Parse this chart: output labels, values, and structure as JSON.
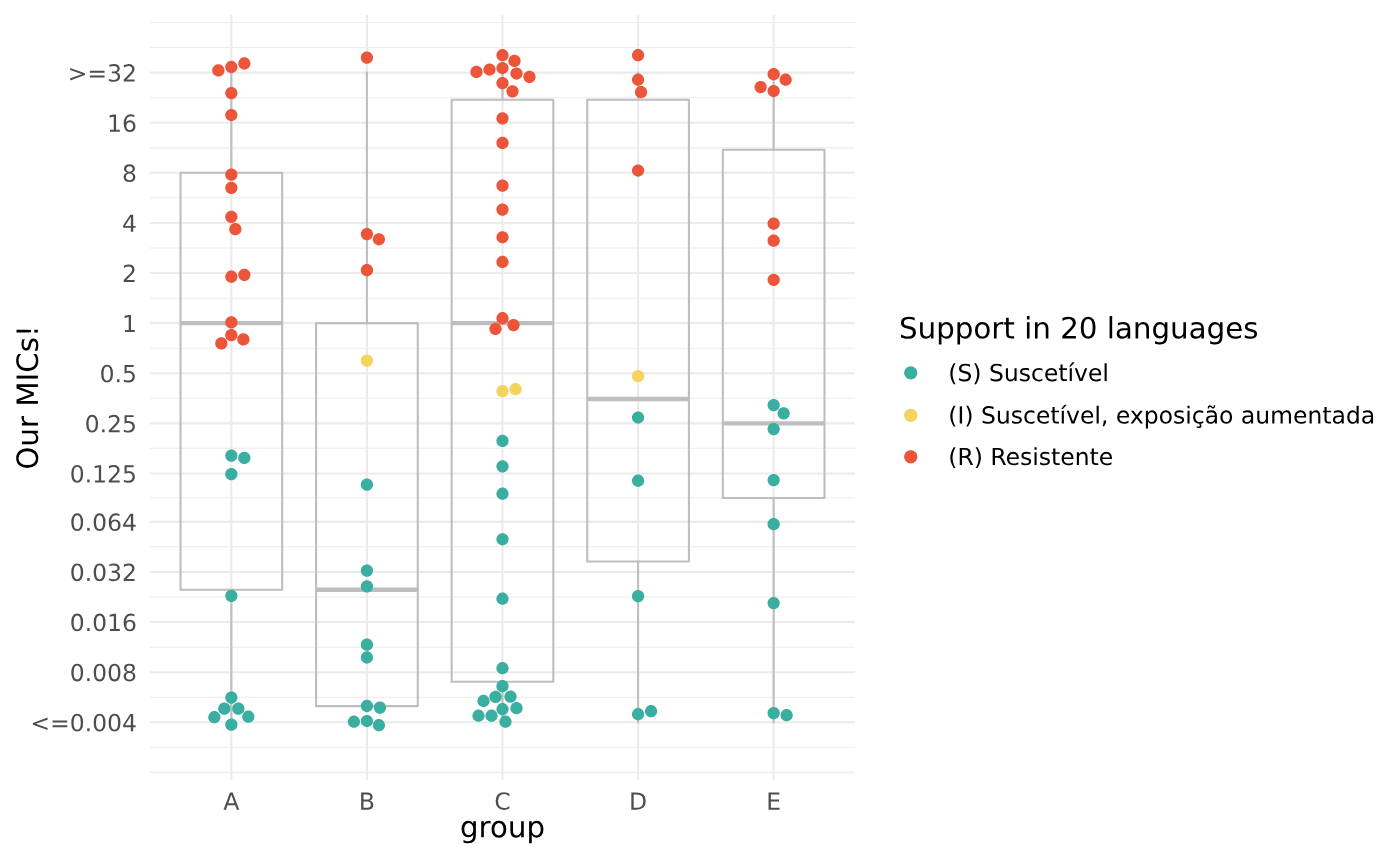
{
  "chart_data": {
    "type": "box",
    "categories": [
      "A",
      "B",
      "C",
      "D",
      "E"
    ],
    "xlabel": "group",
    "ylabel": "Our MICs!",
    "legend_title": "Support in 20 languages",
    "legend": "right",
    "grid": true,
    "log": "y",
    "marker": "circle",
    "color": "#bebebe",
    "ylim": [
      0.0018,
      71
    ],
    "yticks": [
      {
        "value": 0.002,
        "label": null
      },
      {
        "value": 0.00283,
        "label": null
      },
      {
        "value": 0.004,
        "label": "<=0.004"
      },
      {
        "value": 0.00566,
        "label": null
      },
      0.008,
      {
        "value": 0.0113,
        "label": null
      },
      0.016,
      {
        "value": 0.0226,
        "label": null
      },
      0.032,
      {
        "value": 0.0453,
        "label": null
      },
      0.064,
      {
        "value": 0.0894,
        "label": null
      },
      0.125,
      {
        "value": 0.177,
        "label": null
      },
      0.25,
      {
        "value": 0.354,
        "label": null
      },
      0.5,
      {
        "value": 0.707,
        "label": null
      },
      1,
      {
        "value": 1.41,
        "label": null
      },
      2,
      {
        "value": 2.83,
        "label": null
      },
      4,
      {
        "value": 5.66,
        "label": null
      },
      8,
      {
        "value": 11.3,
        "label": null
      },
      16,
      {
        "value": 22.6,
        "label": null
      },
      {
        "value": 32,
        "label": ">=32"
      },
      {
        "value": 45.3,
        "label": null
      },
      {
        "value": 64,
        "label": null
      }
    ],
    "boxes": [
      {
        "low": 0.004,
        "q1": 0.025,
        "median": 1,
        "q3": 8,
        "high": 32
      },
      {
        "low": 0.005,
        "q1": 0.005,
        "median": 0.025,
        "q3": 1,
        "high": 32
      },
      {
        "low": 0.004,
        "q1": 0.007,
        "median": 1,
        "q3": 22,
        "high": 32
      },
      {
        "low": 0.004,
        "q1": 0.037,
        "median": 0.35,
        "q3": 22,
        "high": 32
      },
      {
        "low": 0.004,
        "q1": 0.089,
        "median": 0.25,
        "q3": 11,
        "high": 32
      }
    ],
    "series": [
      {
        "type": "scatter",
        "name": "(S) Suscetível",
        "color": "#3aaea0",
        "x": [
          "A",
          "A",
          "A",
          "A",
          "A",
          "A",
          "A",
          "A",
          "A",
          "A",
          "B",
          "B",
          "B",
          "B",
          "B",
          "B",
          "B",
          "B",
          "B",
          "B",
          "C",
          "C",
          "C",
          "C",
          "C",
          "C",
          "C",
          "C",
          "C",
          "C",
          "C",
          "C",
          "C",
          "C",
          "C",
          "D",
          "D",
          "D",
          "D",
          "D",
          "E",
          "E",
          "E",
          "E",
          "E",
          "E",
          "E",
          "E"
        ],
        "values": [
          0.16,
          0.155,
          0.124,
          0.023,
          0.00563,
          0.00483,
          0.00483,
          0.00432,
          0.00429,
          0.00387,
          0.107,
          0.0326,
          0.0262,
          0.0117,
          0.0098,
          0.00501,
          0.0049,
          0.00407,
          0.00384,
          0.00403,
          0.196,
          0.138,
          0.0944,
          0.0503,
          0.0221,
          0.00845,
          0.00659,
          0.0057,
          0.00568,
          0.00537,
          0.00479,
          0.00486,
          0.00438,
          0.00438,
          0.00403,
          0.271,
          0.113,
          0.0229,
          0.00447,
          0.00466,
          0.322,
          0.287,
          0.231,
          0.114,
          0.062,
          0.0208,
          0.00454,
          0.00441
        ]
      },
      {
        "type": "scatter",
        "name": "(I) Suscetível, exposição aumentada",
        "color": "#f4d35e",
        "x": [
          "B",
          "C",
          "C",
          "D"
        ],
        "values": [
          0.596,
          0.39,
          0.401,
          0.48
        ]
      },
      {
        "type": "scatter",
        "name": "(R) Resistente",
        "color": "#ed553a",
        "x": [
          "A",
          "A",
          "A",
          "A",
          "A",
          "A",
          "A",
          "A",
          "A",
          "A",
          "A",
          "A",
          "A",
          "A",
          "A",
          "B",
          "B",
          "B",
          "B",
          "C",
          "C",
          "C",
          "C",
          "C",
          "C",
          "C",
          "C",
          "C",
          "C",
          "C",
          "C",
          "C",
          "C",
          "C",
          "C",
          "C",
          "C",
          "D",
          "D",
          "D",
          "D",
          "E",
          "E",
          "E",
          "E",
          "E",
          "E",
          "E"
        ],
        "values": [
          34.6,
          36.3,
          33.0,
          24.1,
          17.8,
          7.8,
          6.5,
          4.35,
          3.67,
          1.9,
          1.95,
          1.01,
          0.847,
          0.798,
          0.755,
          39.4,
          3.43,
          3.19,
          2.08,
          40.7,
          37.6,
          34.1,
          33.4,
          31.6,
          32.3,
          30.2,
          27.7,
          24.7,
          17.0,
          12.1,
          6.7,
          4.81,
          3.28,
          2.33,
          1.07,
          0.973,
          0.924,
          40.7,
          29.0,
          24.4,
          8.26,
          31.3,
          29.0,
          24.8,
          26.2,
          3.96,
          3.13,
          1.82
        ]
      }
    ]
  }
}
